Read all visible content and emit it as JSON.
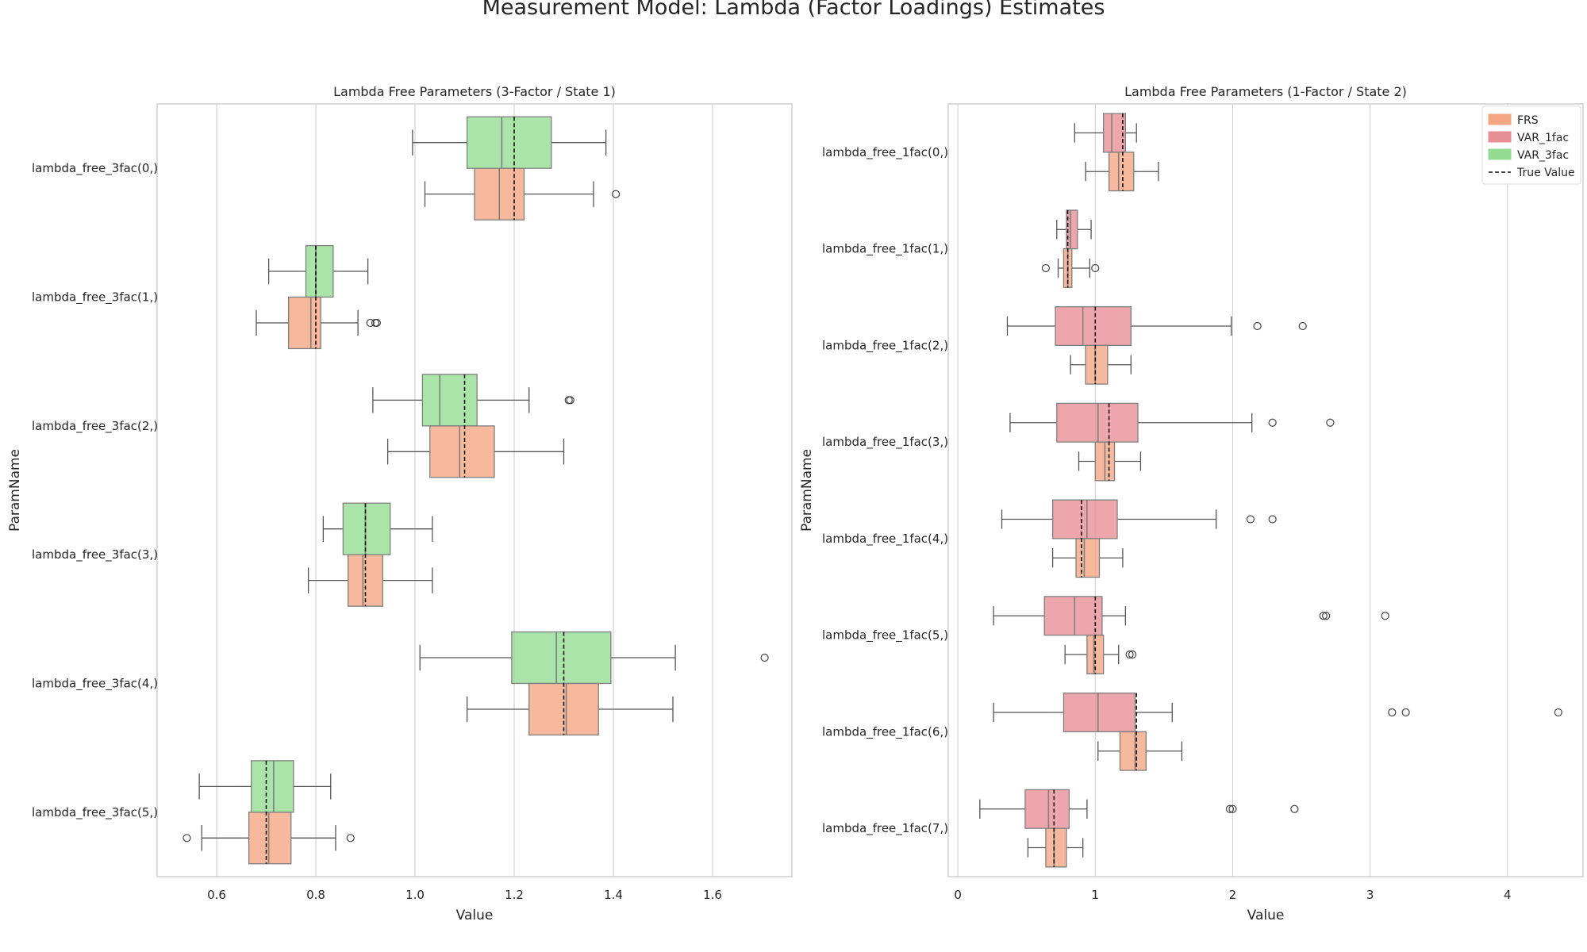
{
  "figure_title": "Measurement Model: Lambda (Factor Loadings) Estimates",
  "colors": {
    "FRS": "#f4a582",
    "VAR_1fac": "#e88e95",
    "VAR_3fac": "#93dc91",
    "frame": "#cfcfcf",
    "grid": "#d3d3d3",
    "whisker": "#555555",
    "box_edge": "#7f7f7f"
  },
  "legend": {
    "placement": "upper right of right panel",
    "entries": [
      {
        "label": "FRS",
        "key": "FRS",
        "kind": "patch"
      },
      {
        "label": "VAR_1fac",
        "key": "VAR_1fac",
        "kind": "patch"
      },
      {
        "label": "VAR_3fac",
        "key": "VAR_3fac",
        "kind": "patch"
      },
      {
        "label": "True Value",
        "key": "true",
        "kind": "dashed-line"
      }
    ]
  },
  "chart_data": [
    {
      "type": "boxplot",
      "orientation": "horizontal",
      "title": "Lambda Free Parameters (3-Factor / State 1)",
      "xlabel": "Value",
      "ylabel": "ParamName",
      "xlim": [
        0.48,
        1.76
      ],
      "xticks": [
        0.6,
        0.8,
        1.0,
        1.2,
        1.4,
        1.6
      ],
      "xtick_labels": [
        "0.6",
        "0.8",
        "1.0",
        "1.2",
        "1.4",
        "1.6"
      ],
      "grid": "x",
      "hue_order": [
        "VAR_3fac",
        "FRS"
      ],
      "categories": [
        "lambda_free_3fac(0,)",
        "lambda_free_3fac(1,)",
        "lambda_free_3fac(2,)",
        "lambda_free_3fac(3,)",
        "lambda_free_3fac(4,)",
        "lambda_free_3fac(5,)"
      ],
      "true_values": [
        1.2,
        0.8,
        1.1,
        0.9,
        1.3,
        0.7
      ],
      "series": [
        {
          "name": "VAR_3fac",
          "boxes": [
            {
              "whislo": 0.995,
              "q1": 1.105,
              "med": 1.175,
              "q3": 1.275,
              "whishi": 1.385,
              "fliers": []
            },
            {
              "whislo": 0.705,
              "q1": 0.78,
              "med": 0.8,
              "q3": 0.835,
              "whishi": 0.905,
              "fliers": []
            },
            {
              "whislo": 0.915,
              "q1": 1.015,
              "med": 1.05,
              "q3": 1.125,
              "whishi": 1.23,
              "fliers": [
                1.31,
                1.313
              ]
            },
            {
              "whislo": 0.815,
              "q1": 0.855,
              "med": 0.9,
              "q3": 0.95,
              "whishi": 1.035,
              "fliers": []
            },
            {
              "whislo": 1.01,
              "q1": 1.195,
              "med": 1.285,
              "q3": 1.395,
              "whishi": 1.525,
              "fliers": [
                1.705
              ]
            },
            {
              "whislo": 0.565,
              "q1": 0.67,
              "med": 0.715,
              "q3": 0.755,
              "whishi": 0.83,
              "fliers": []
            }
          ]
        },
        {
          "name": "FRS",
          "boxes": [
            {
              "whislo": 1.02,
              "q1": 1.12,
              "med": 1.17,
              "q3": 1.22,
              "whishi": 1.36,
              "fliers": [
                1.405
              ]
            },
            {
              "whislo": 0.68,
              "q1": 0.745,
              "med": 0.79,
              "q3": 0.81,
              "whishi": 0.885,
              "fliers": [
                0.91,
                0.92,
                0.923
              ]
            },
            {
              "whislo": 0.945,
              "q1": 1.03,
              "med": 1.09,
              "q3": 1.16,
              "whishi": 1.3,
              "fliers": []
            },
            {
              "whislo": 0.785,
              "q1": 0.865,
              "med": 0.895,
              "q3": 0.935,
              "whishi": 1.035,
              "fliers": []
            },
            {
              "whislo": 1.105,
              "q1": 1.23,
              "med": 1.305,
              "q3": 1.37,
              "whishi": 1.52,
              "fliers": []
            },
            {
              "whislo": 0.57,
              "q1": 0.665,
              "med": 0.705,
              "q3": 0.75,
              "whishi": 0.84,
              "fliers": [
                0.54,
                0.87
              ]
            }
          ]
        }
      ]
    },
    {
      "type": "boxplot",
      "orientation": "horizontal",
      "title": "Lambda Free Parameters (1-Factor / State 2)",
      "xlabel": "Value",
      "ylabel": "ParamName",
      "xlim": [
        -0.07,
        4.55
      ],
      "xticks": [
        0,
        1,
        2,
        3,
        4
      ],
      "xtick_labels": [
        "0",
        "1",
        "2",
        "3",
        "4"
      ],
      "grid": "x",
      "hue_order": [
        "VAR_1fac",
        "FRS"
      ],
      "categories": [
        "lambda_free_1fac(0,)",
        "lambda_free_1fac(1,)",
        "lambda_free_1fac(2,)",
        "lambda_free_1fac(3,)",
        "lambda_free_1fac(4,)",
        "lambda_free_1fac(5,)",
        "lambda_free_1fac(6,)",
        "lambda_free_1fac(7,)"
      ],
      "true_values": [
        1.2,
        0.8,
        1.0,
        1.1,
        0.9,
        1.0,
        1.3,
        0.7
      ],
      "series": [
        {
          "name": "VAR_1fac",
          "boxes": [
            {
              "whislo": 0.85,
              "q1": 1.06,
              "med": 1.12,
              "q3": 1.22,
              "whishi": 1.3,
              "fliers": []
            },
            {
              "whislo": 0.72,
              "q1": 0.79,
              "med": 0.82,
              "q3": 0.87,
              "whishi": 0.97,
              "fliers": []
            },
            {
              "whislo": 0.36,
              "q1": 0.71,
              "med": 0.91,
              "q3": 1.26,
              "whishi": 1.99,
              "fliers": [
                2.18,
                2.51
              ]
            },
            {
              "whislo": 0.38,
              "q1": 0.72,
              "med": 1.02,
              "q3": 1.31,
              "whishi": 2.14,
              "fliers": [
                2.29,
                2.71
              ]
            },
            {
              "whislo": 0.32,
              "q1": 0.69,
              "med": 0.94,
              "q3": 1.16,
              "whishi": 1.88,
              "fliers": [
                2.13,
                2.29
              ]
            },
            {
              "whislo": 0.26,
              "q1": 0.63,
              "med": 0.85,
              "q3": 1.05,
              "whishi": 1.22,
              "fliers": [
                2.66,
                2.68,
                3.11
              ]
            },
            {
              "whislo": 0.26,
              "q1": 0.77,
              "med": 1.02,
              "q3": 1.29,
              "whishi": 1.56,
              "fliers": [
                3.16,
                3.26,
                4.37
              ]
            },
            {
              "whislo": 0.16,
              "q1": 0.49,
              "med": 0.66,
              "q3": 0.81,
              "whishi": 0.94,
              "fliers": [
                1.98,
                2.0,
                2.45
              ]
            }
          ]
        },
        {
          "name": "FRS",
          "boxes": [
            {
              "whislo": 0.93,
              "q1": 1.1,
              "med": 1.17,
              "q3": 1.28,
              "whishi": 1.46,
              "fliers": []
            },
            {
              "whislo": 0.73,
              "q1": 0.77,
              "med": 0.8,
              "q3": 0.83,
              "whishi": 0.96,
              "fliers": [
                0.64,
                1.0
              ]
            },
            {
              "whislo": 0.82,
              "q1": 0.93,
              "med": 1.0,
              "q3": 1.09,
              "whishi": 1.26,
              "fliers": []
            },
            {
              "whislo": 0.88,
              "q1": 1.0,
              "med": 1.07,
              "q3": 1.14,
              "whishi": 1.33,
              "fliers": []
            },
            {
              "whislo": 0.69,
              "q1": 0.86,
              "med": 0.92,
              "q3": 1.03,
              "whishi": 1.2,
              "fliers": []
            },
            {
              "whislo": 0.78,
              "q1": 0.94,
              "med": 0.99,
              "q3": 1.06,
              "whishi": 1.17,
              "fliers": [
                1.25,
                1.27
              ]
            },
            {
              "whislo": 1.02,
              "q1": 1.18,
              "med": 1.29,
              "q3": 1.37,
              "whishi": 1.63,
              "fliers": []
            },
            {
              "whislo": 0.51,
              "q1": 0.64,
              "med": 0.7,
              "q3": 0.79,
              "whishi": 0.91,
              "fliers": []
            }
          ]
        }
      ]
    }
  ]
}
